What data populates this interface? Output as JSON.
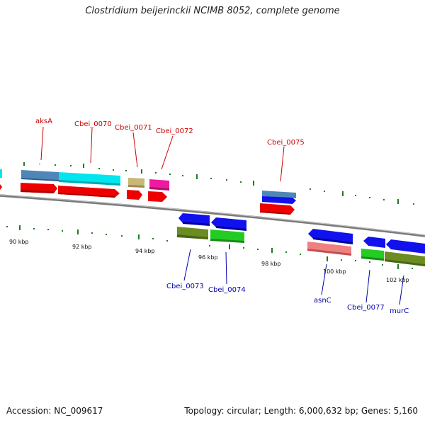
{
  "title": "Clostridium beijerinckii NCIMB 8052, complete genome",
  "footer": {
    "accession": "Accession: NC_009617",
    "topology": "Topology: circular; Length: 6,000,632 bp; Genes: 5,160"
  },
  "colors": {
    "backbone": "#7a7a7a",
    "tick": "#227a22",
    "label_top": "#cc0000",
    "label_bottom": "#0000aa",
    "cds": "#ee0000",
    "steelblue": "#4f86b8",
    "cyan": "#00e6ee",
    "khaki": "#c7b877",
    "magenta": "#ee1aa0",
    "blue": "#1111ee",
    "olive": "#6b8c22",
    "green": "#22cc22",
    "salmon": "#f08080"
  },
  "scale_labels": [
    "90 kbp",
    "92 kbp",
    "94 kbp",
    "96 kbp",
    "98 kbp",
    "100 kbp",
    "102 kbp"
  ],
  "top_labels": [
    "aksA",
    "Cbei_0070",
    "Cbei_0071",
    "Cbei_0072",
    "Cbei_0075"
  ],
  "bottom_labels": [
    "Cbei_0073",
    "Cbei_0074",
    "asnC",
    "Cbei_0077",
    "murC"
  ]
}
